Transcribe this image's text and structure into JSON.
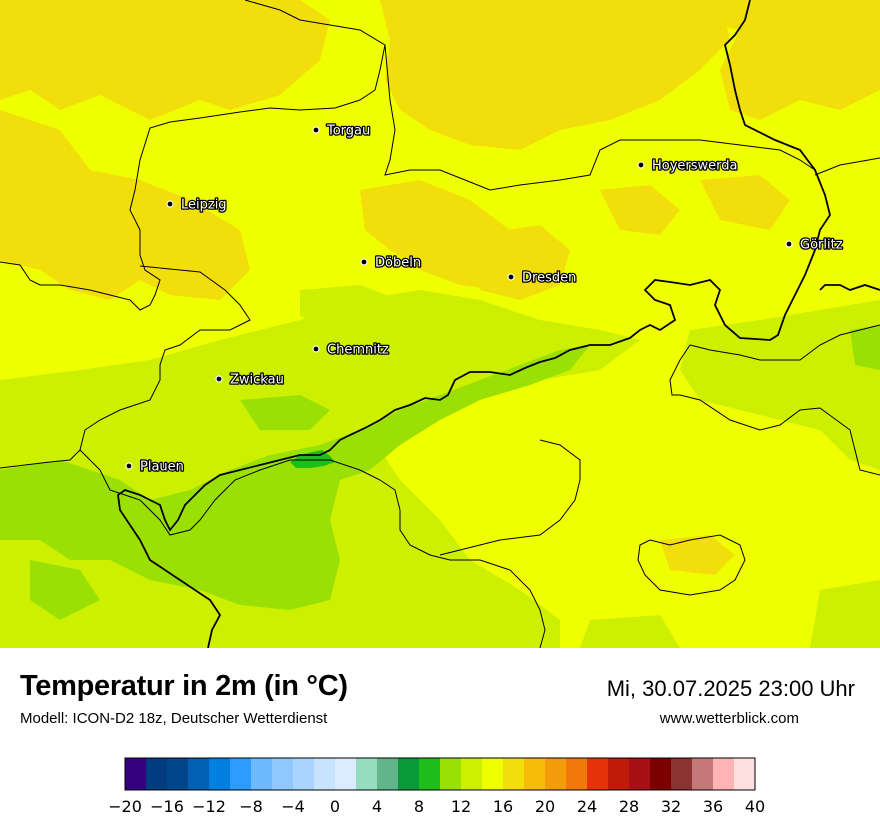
{
  "header": {
    "title": "Temperatur in 2m (in °C)",
    "model": "Modell: ICON-D2 18z, Deutscher Wetterdienst",
    "datetime": "Mi, 30.07.2025 23:00 Uhr",
    "website": "www.wetterblick.com"
  },
  "cities": [
    {
      "name": "Torgau"
    },
    {
      "name": "Hoyerswerda"
    },
    {
      "name": "Leipzig"
    },
    {
      "name": "Görlitz"
    },
    {
      "name": "Döbeln"
    },
    {
      "name": "Dresden"
    },
    {
      "name": "Chemnitz"
    },
    {
      "name": "Zwickau"
    },
    {
      "name": "Plauen"
    }
  ],
  "legend": {
    "ticks": [
      "−20",
      "−16",
      "−12",
      "−8",
      "−4",
      "0",
      "4",
      "8",
      "12",
      "16",
      "20",
      "24",
      "28",
      "32",
      "36",
      "40"
    ],
    "colors": [
      "#330080",
      "#003c7f",
      "#00468a",
      "#0060b4",
      "#0080e0",
      "#2e9cff",
      "#6fbaff",
      "#8ec8ff",
      "#a8d4ff",
      "#c8e3ff",
      "#dcecff",
      "#96dcbe",
      "#62b48a",
      "#0a9a3a",
      "#1fbd1a",
      "#9be004",
      "#ccf000",
      "#f0ff00",
      "#f2de0a",
      "#f5bd0a",
      "#f59c0a",
      "#f2780a",
      "#e6320a",
      "#c01a0a",
      "#a80f14",
      "#7c0000",
      "#8b3232",
      "#c47878",
      "#ffb4b4",
      "#ffe0e0"
    ]
  },
  "map_colors": {
    "base": "#f0ff00",
    "warm": "#f2de0a",
    "cool": "#ccf000",
    "cooler": "#9be004",
    "coolest": "#1fbd1a"
  }
}
